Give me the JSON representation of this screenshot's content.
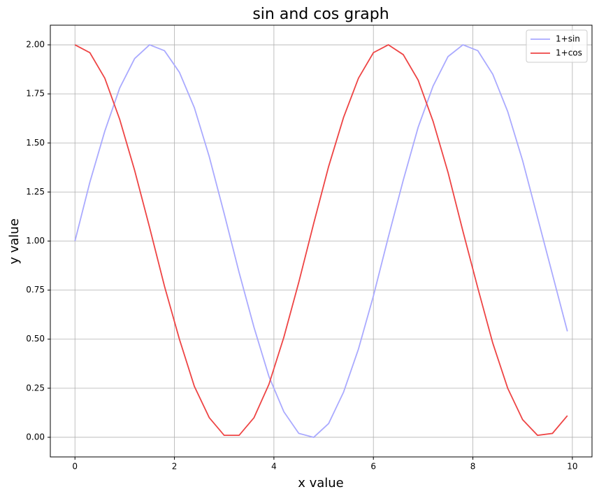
{
  "chart_data": {
    "type": "line",
    "title": "sin and cos graph",
    "x_label": "x value",
    "y_label": "y value",
    "x": [
      0,
      0.3,
      0.6,
      0.9,
      1.2,
      1.5,
      1.8,
      2.1,
      2.4,
      2.7,
      3.0,
      3.3,
      3.6,
      3.9,
      4.2,
      4.5,
      4.8,
      5.1,
      5.4,
      5.7,
      6.0,
      6.3,
      6.6,
      6.9,
      7.2,
      7.5,
      7.8,
      8.1,
      8.4,
      8.7,
      9.0,
      9.3,
      9.6,
      9.9
    ],
    "series": [
      {
        "name": "1+sin",
        "color": "#aaaaff",
        "values": [
          1.0,
          1.3,
          1.56,
          1.78,
          1.93,
          2.0,
          1.97,
          1.86,
          1.68,
          1.43,
          1.14,
          0.84,
          0.56,
          0.31,
          0.13,
          0.02,
          0.0,
          0.07,
          0.23,
          0.45,
          0.72,
          1.02,
          1.31,
          1.58,
          1.79,
          1.94,
          2.0,
          1.97,
          1.85,
          1.66,
          1.41,
          1.12,
          0.83,
          0.54
        ]
      },
      {
        "name": "1+cos",
        "color": "#ee4444",
        "values": [
          2.0,
          1.96,
          1.83,
          1.62,
          1.36,
          1.07,
          0.77,
          0.5,
          0.26,
          0.1,
          0.01,
          0.01,
          0.1,
          0.27,
          0.51,
          0.79,
          1.09,
          1.38,
          1.63,
          1.83,
          1.96,
          2.0,
          1.95,
          1.82,
          1.61,
          1.35,
          1.05,
          0.76,
          0.48,
          0.25,
          0.09,
          0.01,
          0.02,
          0.11
        ]
      }
    ],
    "xlim": [
      -0.495,
      10.395
    ],
    "ylim": [
      -0.1,
      2.1
    ],
    "xticks": [
      0,
      2,
      4,
      6,
      8,
      10
    ],
    "yticks": [
      {
        "value": 0,
        "label": "0.00"
      },
      {
        "value": 0.25,
        "label": "0.25"
      },
      {
        "value": 0.5,
        "label": "0.50"
      },
      {
        "value": 0.75,
        "label": "0.75"
      },
      {
        "value": 1,
        "label": "1.00"
      },
      {
        "value": 1.25,
        "label": "1.25"
      },
      {
        "value": 1.5,
        "label": "1.50"
      },
      {
        "value": 1.75,
        "label": "1.75"
      },
      {
        "value": 2,
        "label": "2.00"
      }
    ],
    "grid": true,
    "legend": "upper right"
  }
}
